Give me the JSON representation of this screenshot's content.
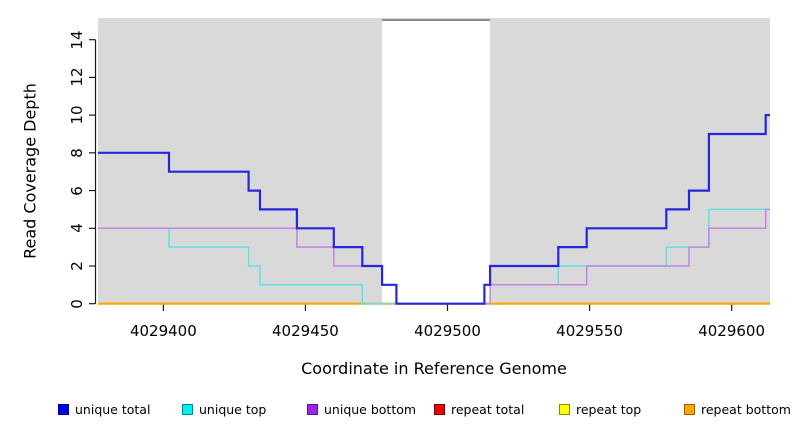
{
  "chart_data": {
    "type": "line",
    "subtype": "step-coverage",
    "title": "",
    "xlabel": "Coordinate in Reference Genome",
    "ylabel": "Read Coverage Depth",
    "x_ticks": [
      4029400,
      4029450,
      4029500,
      4029550,
      4029600
    ],
    "y_ticks": [
      0,
      2,
      4,
      6,
      8,
      10,
      12,
      14
    ],
    "xlim": [
      4029377,
      4029613.5
    ],
    "ylim": [
      0,
      15.15
    ],
    "grid": false,
    "legend_position": "bottom",
    "colors": {
      "plot_background": "#d9d9d9",
      "gap_band_fill": "#ffffff",
      "gap_band_top_edge": "#8c8c8c",
      "axis": "#1a1a1a",
      "text": "#000000"
    },
    "gap_region": {
      "x0": 4029477,
      "x1": 4029515
    },
    "series": [
      {
        "name": "unique total",
        "legend_fill": "#0000e8",
        "legend_border": "#000080",
        "line_color": "#2626de",
        "line_width": 2.2,
        "steps": [
          [
            4029377,
            8
          ],
          [
            4029402,
            7
          ],
          [
            4029430,
            6
          ],
          [
            4029434,
            5
          ],
          [
            4029447,
            4
          ],
          [
            4029460,
            3
          ],
          [
            4029470,
            2
          ],
          [
            4029477,
            1
          ],
          [
            4029482,
            0
          ],
          [
            4029513,
            1
          ],
          [
            4029515,
            2
          ],
          [
            4029539,
            3
          ],
          [
            4029549,
            4
          ],
          [
            4029577,
            5
          ],
          [
            4029585,
            6
          ],
          [
            4029592,
            9
          ],
          [
            4029612,
            10
          ]
        ]
      },
      {
        "name": "unique top",
        "legend_fill": "#00eeee",
        "legend_border": "#008b8b",
        "line_color": "#5fe0e6",
        "line_width": 1.5,
        "steps": [
          [
            4029377,
            4
          ],
          [
            4029402,
            3
          ],
          [
            4029430,
            2
          ],
          [
            4029434,
            1
          ],
          [
            4029470,
            0
          ],
          [
            4029513,
            1
          ],
          [
            4029539,
            2
          ],
          [
            4029577,
            3
          ],
          [
            4029592,
            5
          ]
        ]
      },
      {
        "name": "unique bottom",
        "legend_fill": "#a020f0",
        "legend_border": "#551a8b",
        "line_color": "#c583e6",
        "line_width": 1.5,
        "steps": [
          [
            4029377,
            4
          ],
          [
            4029447,
            3
          ],
          [
            4029460,
            2
          ],
          [
            4029477,
            1
          ],
          [
            4029482,
            0
          ],
          [
            4029515,
            1
          ],
          [
            4029549,
            2
          ],
          [
            4029585,
            3
          ],
          [
            4029592,
            4
          ],
          [
            4029612,
            5
          ]
        ]
      },
      {
        "name": "repeat total",
        "legend_fill": "#ee0000",
        "legend_border": "#7a0000",
        "line_color": "#ee0000",
        "line_width": 1.2,
        "steps": [
          [
            4029377,
            0
          ]
        ]
      },
      {
        "name": "repeat top",
        "legend_fill": "#ffff00",
        "legend_border": "#8b8b00",
        "line_color": "#ffff00",
        "line_width": 1.2,
        "steps": [
          [
            4029377,
            0
          ]
        ]
      },
      {
        "name": "repeat bottom",
        "legend_fill": "#ffa500",
        "legend_border": "#a06000",
        "line_color": "#ffa500",
        "line_width": 2.2,
        "steps": [
          [
            4029377,
            0
          ]
        ]
      }
    ],
    "draw_order": [
      3,
      4,
      5,
      1,
      2,
      0
    ]
  }
}
